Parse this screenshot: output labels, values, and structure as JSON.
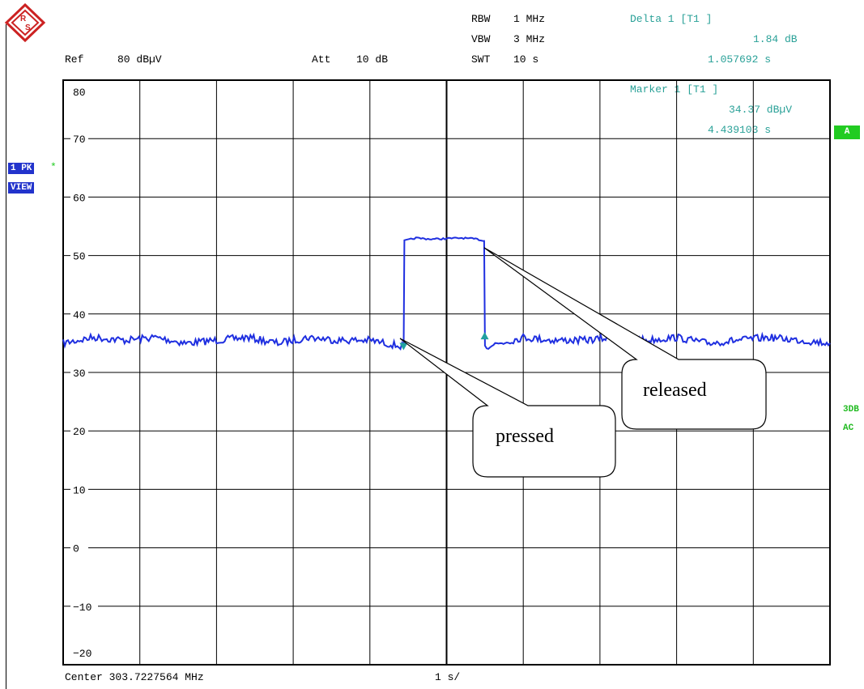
{
  "header": {
    "ref_label": "Ref",
    "ref_value": "80 dBµV",
    "att_label": "Att",
    "att_value": "10 dB",
    "rbw_label": "RBW",
    "rbw_value": "1 MHz",
    "vbw_label": "VBW",
    "vbw_value": "3 MHz",
    "swt_label": "SWT",
    "swt_value": "10 s"
  },
  "markers": {
    "delta_title": "Delta 1 [T1 ]",
    "delta_level": "1.84 dB",
    "delta_time": "1.057692 s",
    "marker_title": "Marker 1 [T1 ]",
    "marker_level": "34.37 dBµV",
    "marker_time": "4.439103 s"
  },
  "side": {
    "trace_badge": "1 PK",
    "view_badge": "VIEW",
    "star": "*",
    "a_box": "A",
    "det_3db": "3DB",
    "det_ac": "AC"
  },
  "footer": {
    "center": "Center 303.7227564 MHz",
    "span": "1 s/"
  },
  "callouts": {
    "pressed": "pressed",
    "released": "released"
  },
  "colors": {
    "trace": "#1f2fe0",
    "marker": "#20a0a0",
    "grid": "#000000",
    "badge": "#2233cc",
    "status_green": "#22cc22"
  },
  "chart_data": {
    "type": "line",
    "title": "",
    "xlabel": "",
    "ylabel": "",
    "xlim": [
      0,
      10
    ],
    "ylim": [
      -20,
      80
    ],
    "yticks": [
      80,
      70,
      60,
      50,
      40,
      30,
      20,
      10,
      0,
      -10,
      -20
    ],
    "grid": true,
    "series": [
      {
        "x": [
          0,
          0.4,
          0.8,
          1.2,
          1.6,
          2.0,
          2.4,
          2.8,
          3.2,
          3.6,
          4.0,
          4.44,
          4.45,
          4.6,
          4.8,
          5.0,
          5.2,
          5.4,
          5.49,
          5.5,
          5.7,
          6.0,
          6.4,
          6.8,
          7.2,
          7.6,
          8.0,
          8.4,
          8.8,
          9.2,
          9.6,
          10.0
        ],
        "y": [
          35,
          36,
          35.5,
          36,
          35,
          35.5,
          36,
          35,
          36,
          35.5,
          35.5,
          34.4,
          52.5,
          53,
          52.8,
          52.9,
          53,
          52.8,
          52.5,
          34.5,
          35,
          36,
          35.5,
          35.5,
          36,
          35.5,
          36,
          35,
          35.5,
          36,
          35.5,
          35
        ]
      }
    ],
    "markers": [
      {
        "name": "Marker 1",
        "x": 4.439103,
        "y": 34.37
      },
      {
        "name": "Delta 1",
        "x": 5.496795,
        "y": 36.21
      }
    ]
  }
}
